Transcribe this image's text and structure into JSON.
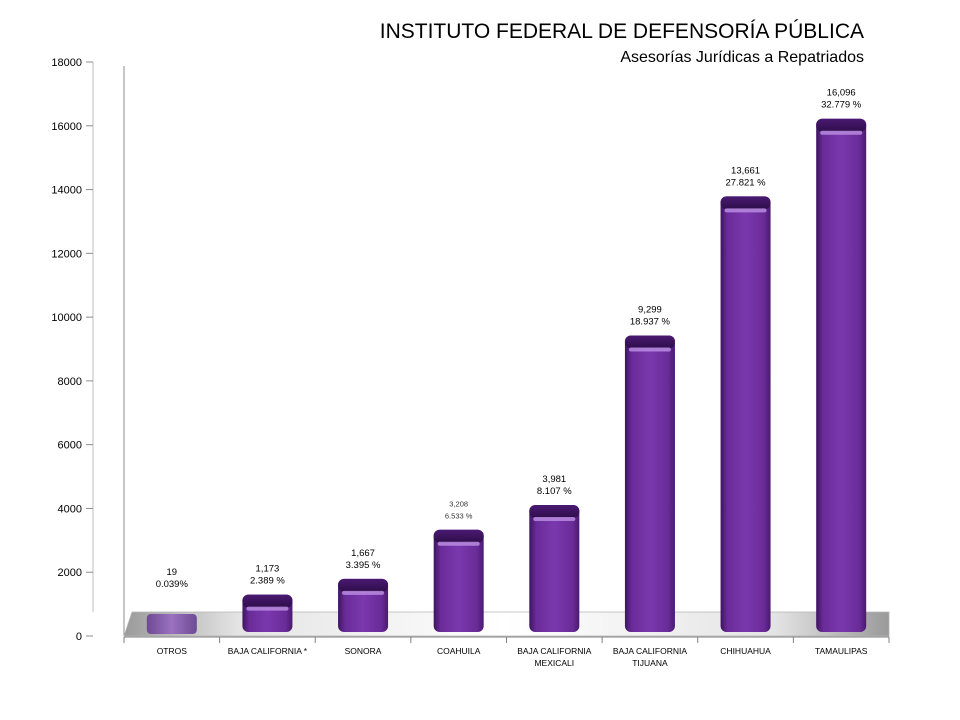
{
  "chart_data": {
    "type": "bar",
    "title": "INSTITUTO FEDERAL DE DEFENSORÍA PÚBLICA",
    "subtitle": "Asesorías Jurídicas a Repatriados",
    "categories": [
      [
        "OTROS"
      ],
      [
        "BAJA CALIFORNIA *"
      ],
      [
        "SONORA"
      ],
      [
        "COAHUILA"
      ],
      [
        "BAJA CALIFORNIA",
        "MEXICALI"
      ],
      [
        "BAJA CALIFORNIA",
        "TIJUANA"
      ],
      [
        "CHIHUAHUA"
      ],
      [
        "TAMAULIPAS"
      ]
    ],
    "values": [
      19,
      1173,
      1667,
      3208,
      3981,
      9299,
      13661,
      16096
    ],
    "value_labels": [
      "19",
      "1,173",
      "1,667",
      "3,208",
      "3,981",
      "9,299",
      "13,661",
      "16,096"
    ],
    "percent_labels": [
      "0.039%",
      "2.389 %",
      "3.395 %",
      "6.533 %",
      "8.107 %",
      "18.937 %",
      "27.821 %",
      "32.779 %"
    ],
    "yticks": [
      "0",
      "2000",
      "4000",
      "6000",
      "8000",
      "10000",
      "12000",
      "14000",
      "16000",
      "18000"
    ],
    "ylim": [
      0,
      18000
    ],
    "xlabel": "",
    "ylabel": "",
    "grid": false,
    "legend": "none",
    "colors": {
      "bar": "#7030a0",
      "bar_light": "#9a5acb",
      "bar_dark": "#3e1460",
      "first_bar": "#8e64b4",
      "floor": "#d9d9d9"
    }
  }
}
